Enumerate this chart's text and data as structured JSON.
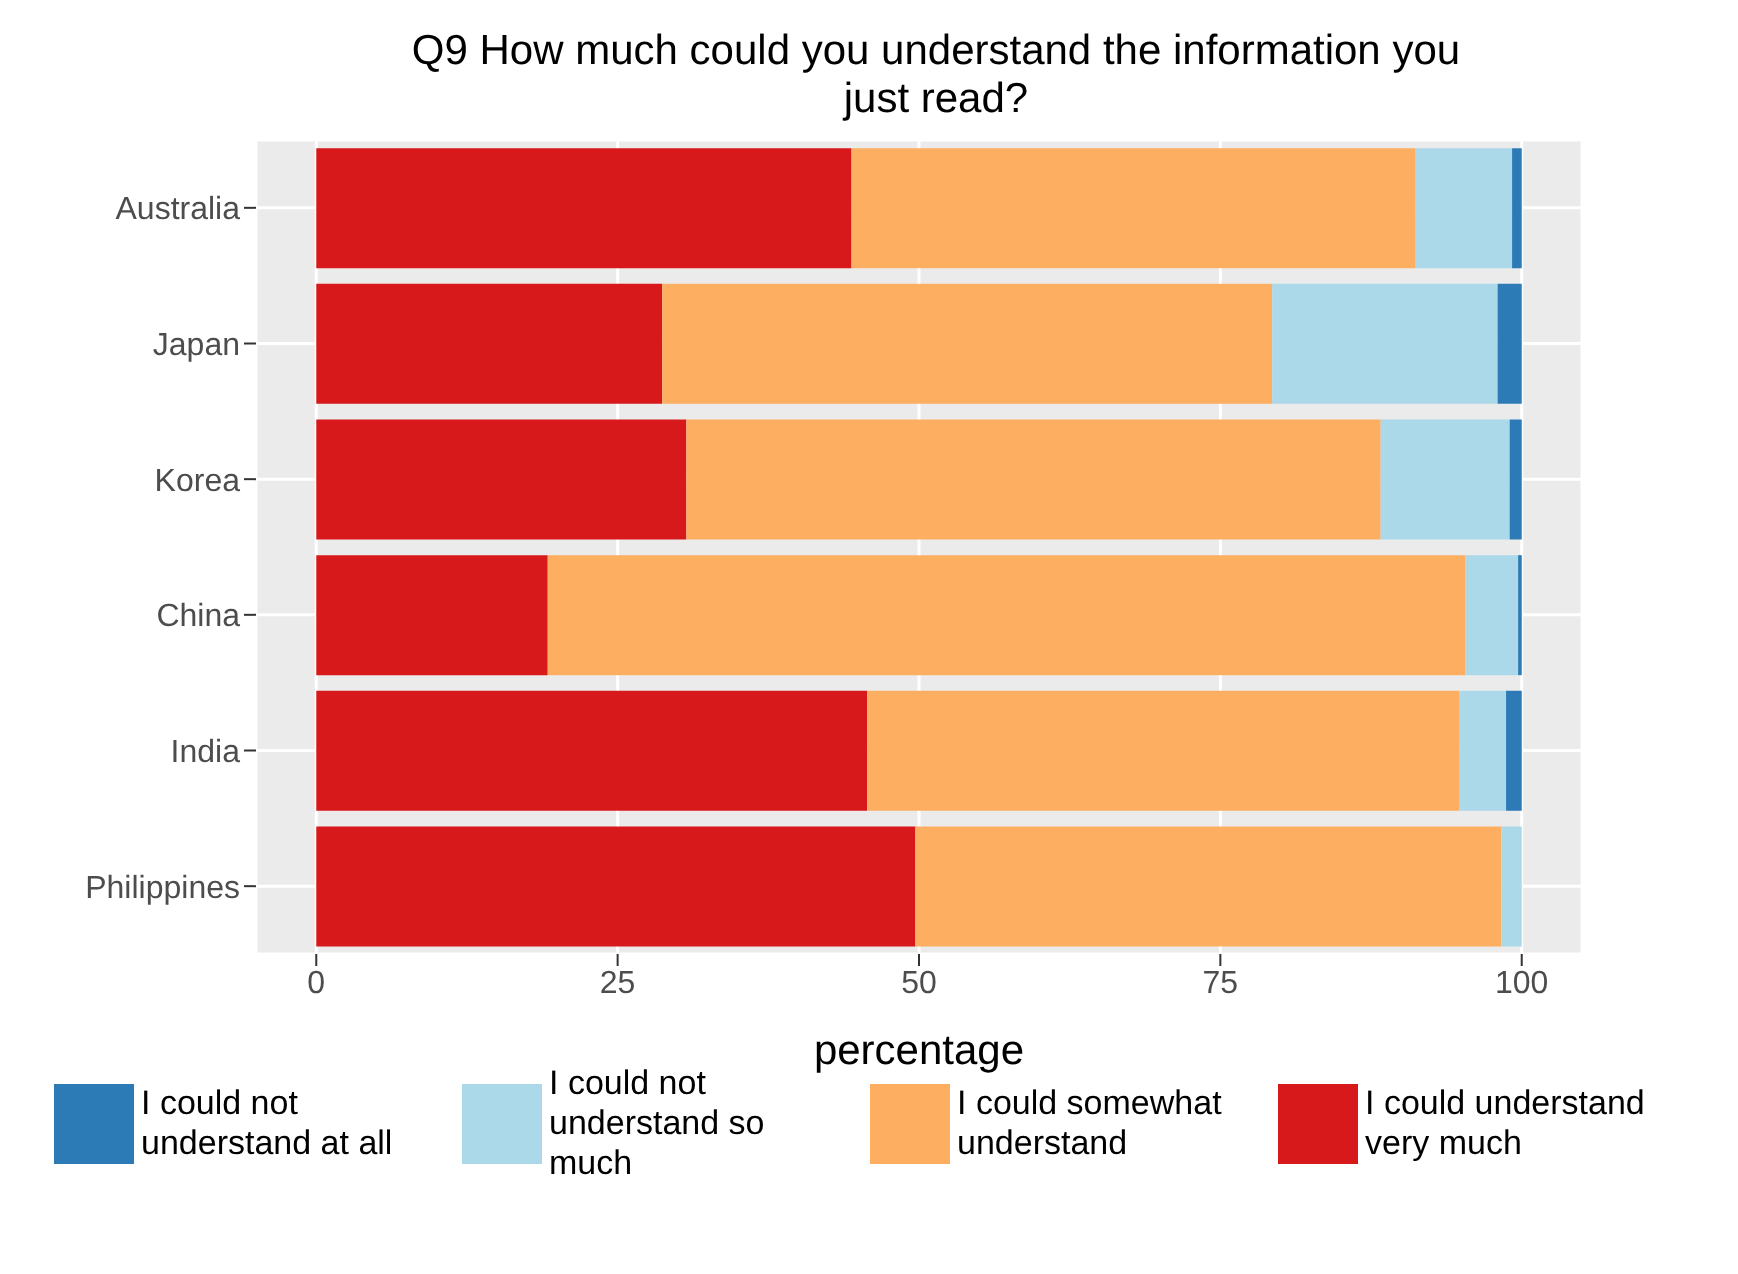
{
  "chart_data": {
    "type": "bar",
    "orientation": "horizontal",
    "stacked": true,
    "title": "Q9 How much could you understand the information you just read?",
    "xlabel": "percentage",
    "categories": [
      "Australia",
      "Japan",
      "Korea",
      "China",
      "India",
      "Philippines"
    ],
    "series": [
      {
        "name": "I could understand very much",
        "color": "#d7191c",
        "values": [
          44.4,
          28.7,
          30.7,
          19.2,
          45.7,
          49.7
        ]
      },
      {
        "name": "I could somewhat understand",
        "color": "#fdae61",
        "values": [
          46.8,
          50.6,
          57.6,
          76.1,
          49.1,
          48.6
        ]
      },
      {
        "name": "I could not understand so much",
        "color": "#abd9e9",
        "values": [
          8.0,
          18.7,
          10.7,
          4.4,
          3.9,
          1.7
        ]
      },
      {
        "name": "I could not understand at all",
        "color": "#2c7bb6",
        "values": [
          0.8,
          2.0,
          1.0,
          0.3,
          1.3,
          0
        ]
      }
    ],
    "xlim": [
      -5,
      105
    ],
    "xticks": [
      0,
      25,
      50,
      75,
      100
    ],
    "grid": true,
    "legend": "bottom"
  }
}
